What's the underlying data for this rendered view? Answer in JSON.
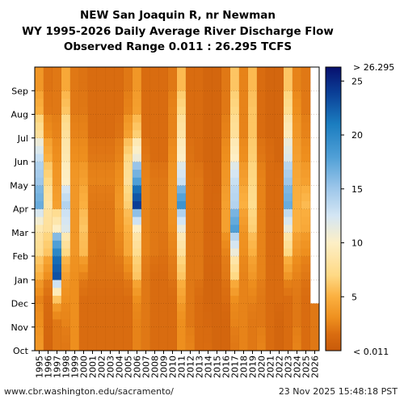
{
  "chart_data": {
    "type": "heatmap",
    "title_lines": [
      "NEW San Joaquin R, nr Newman",
      "WY 1995-2026 Daily Average River Discharge Flow",
      "Observed Range 0.011 : 26.295 TCFS"
    ],
    "x_tick_labels": [
      "1995",
      "1996",
      "1997",
      "1998",
      "1999",
      "2000",
      "2001",
      "2002",
      "2003",
      "2004",
      "2005",
      "2006",
      "2007",
      "2008",
      "2009",
      "2010",
      "2011",
      "2012",
      "2013",
      "2014",
      "2015",
      "2016",
      "2017",
      "2018",
      "2019",
      "2020",
      "2021",
      "2022",
      "2023",
      "2024",
      "2025",
      "2026"
    ],
    "y_tick_labels": [
      "Oct",
      "Nov",
      "Dec",
      "Jan",
      "Feb",
      "Mar",
      "Apr",
      "May",
      "Jun",
      "Jul",
      "Aug",
      "Sep"
    ],
    "colorbar": {
      "min": 0.011,
      "max": 26.295,
      "ticks": [
        5,
        10,
        15,
        20,
        25
      ],
      "top_label": "> 26.295",
      "bottom_label": "< 0.011",
      "stops": [
        {
          "v": 0,
          "color": "#c85a0a"
        },
        {
          "v": 1.5,
          "color": "#d96c10"
        },
        {
          "v": 3,
          "color": "#ee8f1e"
        },
        {
          "v": 5,
          "color": "#fbb040"
        },
        {
          "v": 7,
          "color": "#fed985"
        },
        {
          "v": 10,
          "color": "#fdefc6"
        },
        {
          "v": 12.5,
          "color": "#d4e6f4"
        },
        {
          "v": 15,
          "color": "#9ec7ea"
        },
        {
          "v": 18,
          "color": "#4f9fd6"
        },
        {
          "v": 21,
          "color": "#1b7dc0"
        },
        {
          "v": 24,
          "color": "#0a3d95"
        },
        {
          "v": 26.3,
          "color": "#08106e"
        }
      ]
    },
    "last_year_data_through_month": "Nov",
    "series": [
      {
        "year": "1995",
        "monthly_tcfs": [
          3.5,
          3.0,
          2.5,
          5.0,
          7.5,
          9.0,
          17.0,
          15.0,
          13.0,
          8.0,
          5.0,
          3.5
        ]
      },
      {
        "year": "1996",
        "monthly_tcfs": [
          1.0,
          1.2,
          1.5,
          3.0,
          6.0,
          8.0,
          8.5,
          7.0,
          5.0,
          3.0,
          2.0,
          1.8
        ]
      },
      {
        "year": "1997",
        "monthly_tcfs": [
          2.0,
          2.0,
          6.0,
          23.0,
          20.0,
          10.0,
          4.0,
          3.5,
          3.0,
          2.5,
          2.0,
          2.0
        ]
      },
      {
        "year": "1998",
        "monthly_tcfs": [
          2.0,
          2.5,
          3.0,
          4.0,
          7.0,
          12.0,
          14.0,
          10.0,
          9.0,
          8.0,
          6.0,
          4.5
        ]
      },
      {
        "year": "1999",
        "monthly_tcfs": [
          3.0,
          3.0,
          3.0,
          3.0,
          3.5,
          3.5,
          3.5,
          3.5,
          3.0,
          2.5,
          2.0,
          2.0
        ]
      },
      {
        "year": "2000",
        "monthly_tcfs": [
          1.5,
          1.5,
          1.5,
          2.5,
          5.5,
          6.0,
          5.0,
          4.0,
          3.0,
          2.5,
          2.0,
          1.8
        ]
      },
      {
        "year": "2001",
        "monthly_tcfs": [
          1.5,
          1.5,
          1.5,
          1.8,
          2.0,
          2.0,
          2.0,
          2.5,
          2.0,
          1.5,
          1.5,
          1.5
        ]
      },
      {
        "year": "2002",
        "monthly_tcfs": [
          1.5,
          1.5,
          1.5,
          1.8,
          1.8,
          2.0,
          2.0,
          2.5,
          2.0,
          1.5,
          1.5,
          1.5
        ]
      },
      {
        "year": "2003",
        "monthly_tcfs": [
          1.5,
          1.5,
          1.5,
          1.8,
          2.0,
          2.0,
          2.0,
          2.5,
          2.0,
          1.5,
          1.5,
          1.5
        ]
      },
      {
        "year": "2004",
        "monthly_tcfs": [
          1.5,
          1.5,
          1.5,
          1.8,
          2.5,
          3.0,
          3.5,
          3.0,
          2.5,
          1.8,
          1.5,
          1.5
        ]
      },
      {
        "year": "2005",
        "monthly_tcfs": [
          1.5,
          1.5,
          1.5,
          2.5,
          4.5,
          5.0,
          6.5,
          8.0,
          7.0,
          4.0,
          2.5,
          2.0
        ]
      },
      {
        "year": "2006",
        "monthly_tcfs": [
          2.5,
          2.5,
          3.0,
          6.0,
          7.5,
          10.0,
          24.0,
          18.0,
          11.0,
          6.5,
          4.0,
          3.5
        ]
      },
      {
        "year": "2007",
        "monthly_tcfs": [
          2.0,
          2.0,
          2.0,
          2.0,
          2.5,
          2.5,
          2.5,
          2.5,
          2.0,
          1.5,
          1.5,
          1.5
        ]
      },
      {
        "year": "2008",
        "monthly_tcfs": [
          1.5,
          1.5,
          1.5,
          1.5,
          2.0,
          2.0,
          2.0,
          2.0,
          1.5,
          1.5,
          1.5,
          1.5
        ]
      },
      {
        "year": "2009",
        "monthly_tcfs": [
          1.5,
          1.5,
          1.5,
          1.5,
          1.8,
          2.0,
          2.0,
          2.0,
          1.5,
          1.5,
          1.5,
          1.5
        ]
      },
      {
        "year": "2010",
        "monthly_tcfs": [
          1.5,
          1.5,
          1.5,
          2.0,
          2.5,
          3.0,
          3.5,
          3.5,
          3.0,
          2.5,
          2.5,
          2.0
        ]
      },
      {
        "year": "2011",
        "monthly_tcfs": [
          3.0,
          3.0,
          4.0,
          6.0,
          8.0,
          11.0,
          19.0,
          13.0,
          10.0,
          8.5,
          7.0,
          5.5
        ]
      },
      {
        "year": "2012",
        "monthly_tcfs": [
          2.5,
          2.0,
          2.0,
          2.0,
          2.0,
          2.0,
          2.0,
          2.0,
          1.8,
          1.5,
          1.5,
          1.5
        ]
      },
      {
        "year": "2013",
        "monthly_tcfs": [
          1.5,
          1.5,
          1.5,
          2.0,
          2.0,
          2.0,
          2.0,
          2.0,
          1.5,
          1.5,
          1.5,
          1.5
        ]
      },
      {
        "year": "2014",
        "monthly_tcfs": [
          1.5,
          1.2,
          1.0,
          1.0,
          1.2,
          1.2,
          1.2,
          1.2,
          1.0,
          1.0,
          1.0,
          1.0
        ]
      },
      {
        "year": "2015",
        "monthly_tcfs": [
          1.0,
          1.0,
          1.0,
          1.0,
          1.2,
          1.2,
          1.2,
          1.0,
          1.0,
          1.0,
          1.0,
          1.0
        ]
      },
      {
        "year": "2016",
        "monthly_tcfs": [
          1.0,
          1.0,
          1.5,
          2.0,
          2.5,
          4.0,
          4.0,
          3.5,
          3.0,
          2.5,
          2.0,
          2.0
        ]
      },
      {
        "year": "2017",
        "monthly_tcfs": [
          2.0,
          2.5,
          3.0,
          7.0,
          11.0,
          18.0,
          14.0,
          13.0,
          10.0,
          8.0,
          7.0,
          6.0
        ]
      },
      {
        "year": "2018",
        "monthly_tcfs": [
          2.5,
          2.5,
          2.5,
          2.5,
          3.0,
          3.5,
          5.0,
          4.0,
          3.0,
          2.5,
          2.5,
          2.5
        ]
      },
      {
        "year": "2019",
        "monthly_tcfs": [
          2.0,
          2.0,
          2.5,
          3.5,
          5.0,
          6.5,
          7.5,
          7.0,
          6.5,
          6.0,
          6.0,
          5.5
        ]
      },
      {
        "year": "2020",
        "monthly_tcfs": [
          2.5,
          2.0,
          2.0,
          2.5,
          2.5,
          2.5,
          2.5,
          2.5,
          2.0,
          1.5,
          1.5,
          1.5
        ]
      },
      {
        "year": "2021",
        "monthly_tcfs": [
          1.5,
          1.5,
          1.5,
          1.5,
          1.5,
          1.5,
          1.5,
          1.5,
          1.5,
          1.0,
          1.0,
          1.0
        ]
      },
      {
        "year": "2022",
        "monthly_tcfs": [
          1.0,
          1.0,
          1.5,
          1.5,
          1.5,
          1.5,
          1.5,
          1.5,
          1.0,
          1.0,
          1.0,
          1.0
        ]
      },
      {
        "year": "2023",
        "monthly_tcfs": [
          1.5,
          1.5,
          1.5,
          3.5,
          7.0,
          11.0,
          17.0,
          15.0,
          12.0,
          9.5,
          7.5,
          6.0
        ]
      },
      {
        "year": "2024",
        "monthly_tcfs": [
          2.5,
          2.0,
          2.0,
          2.5,
          3.5,
          5.0,
          5.0,
          4.5,
          4.0,
          3.5,
          3.0,
          2.5
        ]
      },
      {
        "year": "2025",
        "monthly_tcfs": [
          1.5,
          1.5,
          1.5,
          2.0,
          3.0,
          4.5,
          5.5,
          4.0,
          3.0,
          2.5,
          2.0,
          2.0
        ]
      },
      {
        "year": "2026",
        "monthly_tcfs": [
          2.0,
          2.0
        ]
      }
    ]
  },
  "footer": {
    "source": "www.cbr.washington.edu/sacramento/",
    "timestamp": "23 Nov 2025 15:48:18 PST"
  }
}
